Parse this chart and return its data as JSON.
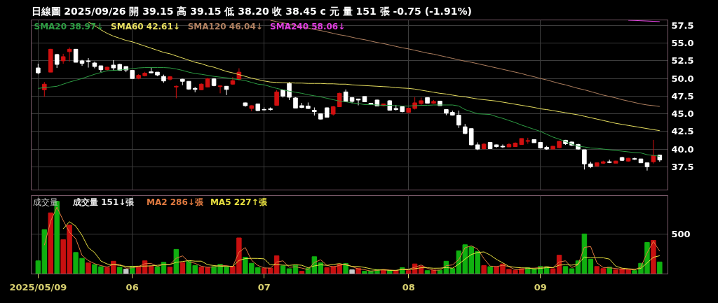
{
  "chart_data": [
    {
      "type": "candlestick",
      "title": "日線圖 2025/09/26 開 39.15 高 39.15 低 38.20 收 38.45 c 元 量 151 張 -0.75 (-1.91%)",
      "categories": [
        "2025/05/09",
        null,
        null,
        null,
        null,
        null,
        null,
        null,
        null,
        null,
        null,
        null,
        null,
        null,
        null,
        "06",
        null,
        null,
        null,
        null,
        null,
        null,
        null,
        null,
        null,
        null,
        null,
        null,
        null,
        null,
        null,
        null,
        null,
        null,
        null,
        null,
        "07",
        null,
        null,
        null,
        null,
        null,
        null,
        null,
        null,
        null,
        null,
        null,
        null,
        null,
        null,
        null,
        null,
        null,
        null,
        null,
        null,
        null,
        null,
        "08",
        null,
        null,
        null,
        null,
        null,
        null,
        null,
        null,
        null,
        null,
        null,
        null,
        null,
        null,
        null,
        null,
        null,
        null,
        null,
        null,
        "09",
        null,
        null,
        null,
        null,
        null,
        null,
        null,
        null,
        null,
        null,
        null,
        null,
        null,
        null,
        null,
        null,
        null,
        null,
        null
      ],
      "colors": [
        "#ffffff",
        "#d01010",
        "#d01010",
        "#ffffff",
        "#d01010",
        "#d01010",
        "#ffffff",
        "#ffffff",
        "#ffffff",
        "#ffffff",
        "#ffffff",
        "#d01010",
        "#ffffff",
        "#ffffff",
        "#ffffff",
        "#ffffff",
        "#d01010",
        "#d01010",
        "#ffffff",
        "#ffffff",
        "#ffffff",
        "#d01010",
        "#d01010",
        "#ffffff",
        "#ffffff",
        "#ffffff",
        "#d01010",
        "#d01010",
        "#ffffff",
        "#d01010",
        "#ffffff",
        "#d01010",
        "#d01010",
        "#ffffff",
        "#d01010",
        "#ffffff",
        "#ffffff",
        "#ffffff",
        "#d01010",
        "#ffffff",
        "#ffffff",
        "#ffffff",
        "#ffffff",
        "#ffffff",
        "#ffffff",
        "#ffffff",
        "#ffffff",
        "#d01010",
        "#d01010",
        "#ffffff",
        "#ffffff",
        "#ffffff",
        "#ffffff",
        "#ffffff",
        "#ffffff",
        "#d01010",
        "#ffffff",
        "#ffffff",
        "#ffffff",
        "#d01010",
        "#d01010",
        "#d01010",
        "#ffffff",
        "#d01010",
        "#ffffff",
        "#ffffff",
        "#ffffff",
        "#ffffff",
        "#ffffff",
        "#ffffff",
        "#ffffff",
        "#d01010",
        "#ffffff",
        "#ffffff",
        "#ffffff",
        "#d01010",
        "#d01010",
        "#d01010",
        "#d01010",
        "#ffffff",
        "#ffffff",
        "#ffffff",
        "#d01010",
        "#d01010",
        "#ffffff",
        "#ffffff",
        "#ffffff",
        "#ffffff",
        "#ffffff",
        "#d01010",
        "#d01010",
        "#ffffff",
        "#d01010",
        "#ffffff",
        "#d01010",
        "#ffffff",
        "#ffffff",
        "#ffffff",
        "#d01010",
        "#ffffff"
      ],
      "ohlc": [
        [
          51.5,
          52.1,
          50.6,
          50.8
        ],
        [
          48.4,
          49.5,
          47.4,
          49.2
        ],
        [
          50.9,
          54.2,
          50.9,
          54.15
        ],
        [
          53.4,
          53.5,
          51.5,
          52.0
        ],
        [
          52.5,
          53.5,
          52.1,
          53.1
        ],
        [
          53.8,
          54.4,
          52.4,
          54.15
        ],
        [
          54.15,
          54.15,
          52.3,
          52.3
        ],
        [
          52.5,
          52.65,
          51.8,
          52.15
        ],
        [
          52.5,
          52.9,
          51.55,
          52.4
        ],
        [
          52.2,
          52.4,
          51.45,
          51.7
        ],
        [
          51.8,
          51.8,
          50.9,
          51.25
        ],
        [
          51.25,
          51.7,
          51.1,
          51.6
        ],
        [
          51.9,
          52.6,
          51.1,
          51.5
        ],
        [
          52.0,
          52.1,
          51.1,
          51.15
        ],
        [
          51.7,
          51.7,
          50.9,
          51.2
        ],
        [
          51.15,
          51.2,
          50.0,
          50.0
        ],
        [
          50.05,
          50.6,
          49.9,
          50.45
        ],
        [
          50.4,
          50.95,
          50.3,
          50.75
        ],
        [
          50.95,
          51.55,
          50.75,
          50.8
        ],
        [
          50.9,
          50.9,
          50.35,
          50.5
        ],
        [
          50.3,
          50.55,
          49.4,
          49.65
        ],
        [
          49.9,
          50.35,
          49.7,
          50.25
        ],
        [
          48.8,
          49.0,
          47.2,
          48.9
        ],
        [
          49.9,
          49.95,
          49.05,
          49.6
        ],
        [
          49.6,
          49.6,
          48.4,
          48.5
        ],
        [
          48.6,
          48.8,
          48.05,
          48.45
        ],
        [
          48.4,
          49.3,
          48.35,
          49.2
        ],
        [
          48.8,
          50.1,
          48.75,
          49.95
        ],
        [
          49.95,
          50.05,
          48.9,
          49.0
        ],
        [
          48.85,
          49.0,
          47.9,
          48.95
        ],
        [
          48.9,
          48.9,
          47.65,
          48.45
        ],
        [
          49.2,
          50.2,
          49.1,
          49.7
        ],
        [
          49.9,
          51.45,
          49.7,
          50.9
        ],
        [
          46.55,
          46.6,
          46.0,
          46.15
        ],
        [
          45.75,
          46.2,
          45.35,
          46.15
        ],
        [
          46.4,
          46.45,
          45.4,
          45.45
        ],
        [
          45.6,
          45.9,
          45.45,
          45.55
        ],
        [
          45.7,
          45.9,
          45.45,
          45.6
        ],
        [
          46.2,
          48.35,
          46.2,
          48.1
        ],
        [
          48.35,
          48.45,
          47.3,
          47.5
        ],
        [
          49.3,
          49.5,
          46.95,
          47.35
        ],
        [
          47.25,
          47.35,
          45.8,
          45.8
        ],
        [
          46.15,
          46.55,
          45.8,
          45.9
        ],
        [
          46.1,
          46.6,
          45.7,
          45.75
        ],
        [
          45.5,
          45.9,
          44.75,
          45.3
        ],
        [
          45.0,
          45.0,
          44.2,
          44.25
        ],
        [
          45.85,
          45.9,
          44.5,
          44.5
        ],
        [
          44.95,
          46.1,
          44.75,
          46.0
        ],
        [
          46.0,
          48.0,
          45.95,
          47.9
        ],
        [
          48.1,
          48.45,
          46.7,
          46.75
        ],
        [
          47.3,
          47.35,
          46.5,
          46.75
        ],
        [
          47.1,
          47.1,
          46.2,
          46.95
        ],
        [
          47.45,
          47.45,
          46.7,
          46.7
        ],
        [
          46.5,
          46.5,
          46.25,
          46.3
        ],
        [
          46.95,
          47.0,
          46.05,
          46.1
        ],
        [
          46.15,
          46.45,
          46.05,
          46.4
        ],
        [
          46.85,
          46.9,
          45.5,
          45.5
        ],
        [
          45.75,
          46.25,
          45.45,
          45.6
        ],
        [
          46.0,
          46.0,
          45.2,
          45.3
        ],
        [
          45.2,
          45.8,
          45.2,
          45.8
        ],
        [
          45.75,
          47.35,
          45.6,
          46.55
        ],
        [
          46.45,
          47.3,
          46.15,
          46.85
        ],
        [
          47.3,
          47.3,
          46.5,
          46.5
        ],
        [
          46.5,
          46.95,
          46.4,
          46.75
        ],
        [
          46.8,
          46.8,
          46.15,
          46.15
        ],
        [
          45.6,
          45.6,
          44.8,
          45.1
        ],
        [
          45.2,
          45.45,
          44.75,
          44.8
        ],
        [
          44.8,
          45.45,
          43.0,
          43.4
        ],
        [
          43.15,
          43.55,
          42.1,
          42.2
        ],
        [
          42.9,
          42.9,
          40.55,
          40.6
        ],
        [
          40.6,
          40.95,
          39.85,
          40.0
        ],
        [
          40.05,
          40.85,
          39.95,
          40.7
        ],
        [
          40.95,
          40.95,
          40.0,
          40.05
        ],
        [
          40.6,
          40.65,
          40.2,
          40.35
        ],
        [
          40.4,
          40.65,
          40.15,
          40.3
        ],
        [
          40.3,
          40.85,
          40.3,
          40.65
        ],
        [
          40.35,
          40.95,
          40.3,
          40.85
        ],
        [
          40.65,
          41.5,
          40.65,
          41.5
        ],
        [
          41.1,
          41.6,
          40.75,
          41.2
        ],
        [
          41.35,
          41.35,
          40.9,
          40.9
        ],
        [
          40.95,
          40.95,
          40.1,
          40.15
        ],
        [
          40.25,
          40.45,
          39.9,
          40.0
        ],
        [
          40.0,
          40.45,
          40.0,
          40.4
        ],
        [
          40.2,
          41.2,
          40.1,
          41.1
        ],
        [
          41.25,
          41.3,
          40.6,
          40.75
        ],
        [
          41.0,
          41.05,
          40.45,
          40.55
        ],
        [
          40.65,
          40.75,
          39.9,
          40.0
        ],
        [
          39.9,
          39.9,
          37.1,
          37.9
        ],
        [
          37.9,
          38.2,
          37.3,
          37.5
        ],
        [
          37.6,
          38.1,
          37.55,
          38.05
        ],
        [
          38.0,
          38.35,
          37.9,
          38.2
        ],
        [
          38.2,
          38.5,
          38.0,
          38.1
        ],
        [
          38.0,
          38.35,
          38.0,
          38.3
        ],
        [
          38.8,
          38.9,
          38.3,
          38.4
        ],
        [
          38.3,
          38.75,
          38.2,
          38.7
        ],
        [
          38.65,
          38.8,
          38.45,
          38.55
        ],
        [
          38.6,
          38.6,
          38.05,
          38.05
        ],
        [
          38.05,
          38.05,
          36.95,
          37.5
        ],
        [
          38.2,
          41.3,
          37.95,
          39.05
        ],
        [
          39.15,
          39.15,
          38.2,
          38.45
        ]
      ],
      "series": [
        {
          "name": "SMA20 38.97↓",
          "type": "line",
          "color": "#2e9e44",
          "values": [
            48.6,
            48.7,
            48.8,
            48.9,
            49.2,
            49.5,
            49.75,
            50.0,
            50.3,
            50.6,
            50.85,
            51.1,
            51.15,
            51.2,
            51.3,
            51.4,
            51.5,
            51.55,
            51.55,
            51.55,
            51.55,
            51.5,
            51.35,
            51.15,
            50.9,
            50.7,
            50.6,
            50.45,
            50.3,
            50.2,
            50.1,
            49.95,
            49.85,
            49.7,
            49.45,
            49.2,
            49.1,
            48.85,
            48.6,
            48.4,
            48.2,
            48.05,
            47.9,
            47.7,
            47.55,
            47.4,
            47.2,
            47.0,
            46.8,
            46.7,
            46.55,
            46.45,
            46.3,
            46.3,
            46.25,
            46.2,
            46.2,
            46.15,
            46.1,
            46.1,
            46.15,
            46.2,
            46.2,
            46.25,
            46.25,
            46.25,
            46.25,
            46.1,
            45.6,
            45.3,
            45.0,
            44.95,
            44.9,
            44.6,
            44.35,
            44.05,
            43.75,
            43.4,
            43.1,
            42.8,
            42.5,
            42.1,
            41.7,
            41.4,
            41.05,
            40.7,
            40.4,
            40.3,
            40.15,
            40.1,
            40.0,
            39.9,
            39.8,
            39.7,
            39.6,
            39.5,
            39.45,
            39.2,
            39.1,
            38.97
          ]
        },
        {
          "name": "SMA60 42.61↓",
          "type": "line",
          "color": "#e8e060",
          "values": [
            null,
            null,
            null,
            null,
            null,
            null,
            null,
            null,
            58.0,
            57.5,
            56.9,
            56.4,
            56.0,
            55.7,
            55.4,
            55.2,
            54.9,
            54.6,
            54.3,
            54.0,
            53.7,
            53.5,
            53.2,
            52.9,
            52.6,
            52.3,
            52.1,
            51.8,
            51.6,
            51.3,
            51.0,
            50.8,
            50.55,
            50.3,
            50.05,
            49.85,
            49.65,
            49.5,
            49.45,
            49.4,
            49.4,
            49.35,
            49.35,
            49.3,
            49.3,
            49.3,
            49.25,
            49.25,
            49.2,
            49.2,
            49.1,
            49.05,
            49.0,
            48.95,
            48.9,
            48.85,
            48.8,
            48.7,
            48.65,
            48.6,
            48.5,
            48.35,
            48.2,
            48.05,
            47.9,
            47.8,
            47.65,
            47.5,
            47.4,
            47.25,
            47.1,
            47.0,
            46.9,
            46.8,
            46.65,
            46.5,
            46.35,
            46.2,
            46.05,
            45.9,
            45.7,
            45.6,
            45.45,
            45.3,
            45.15,
            45.0,
            44.85,
            44.65,
            44.45,
            44.25,
            44.05,
            43.85,
            43.65,
            43.5,
            43.35,
            43.2,
            43.05,
            42.9,
            42.75,
            42.61
          ]
        },
        {
          "name": "SMA120 46.04↓",
          "type": "line",
          "color": "#b08060",
          "values": [
            null,
            null,
            null,
            null,
            null,
            null,
            null,
            null,
            null,
            null,
            null,
            null,
            null,
            null,
            null,
            null,
            null,
            null,
            null,
            null,
            null,
            null,
            null,
            null,
            null,
            null,
            null,
            null,
            null,
            null,
            null,
            null,
            null,
            null,
            null,
            null,
            null,
            58.25,
            58.05,
            57.9,
            57.7,
            57.5,
            57.3,
            57.15,
            56.95,
            56.8,
            56.6,
            56.4,
            56.2,
            56.05,
            55.85,
            55.65,
            55.5,
            55.3,
            55.1,
            54.95,
            54.75,
            54.55,
            54.35,
            54.2,
            54.0,
            53.8,
            53.6,
            53.45,
            53.25,
            53.05,
            52.85,
            52.65,
            52.45,
            52.3,
            52.1,
            51.9,
            51.7,
            51.5,
            51.3,
            51.1,
            50.9,
            50.7,
            50.45,
            50.25,
            50.0,
            49.8,
            49.55,
            49.3,
            49.1,
            48.85,
            48.6,
            48.4,
            48.15,
            47.9,
            47.65,
            47.45,
            47.25,
            47.0,
            46.8,
            46.6,
            46.4,
            46.25,
            46.15,
            46.04
          ]
        },
        {
          "name": "SMA240 58.06↓",
          "type": "line",
          "color": "#e040e0",
          "values": [
            null,
            null,
            null,
            null,
            null,
            null,
            null,
            null,
            null,
            null,
            null,
            null,
            null,
            null,
            null,
            null,
            null,
            null,
            null,
            null,
            null,
            null,
            null,
            null,
            null,
            null,
            null,
            null,
            null,
            null,
            null,
            null,
            null,
            null,
            null,
            null,
            null,
            null,
            null,
            null,
            null,
            null,
            null,
            null,
            null,
            null,
            null,
            null,
            null,
            null,
            null,
            null,
            null,
            null,
            null,
            null,
            null,
            null,
            null,
            null,
            null,
            null,
            null,
            null,
            null,
            null,
            null,
            null,
            null,
            null,
            null,
            null,
            null,
            null,
            null,
            null,
            null,
            null,
            null,
            null,
            null,
            null,
            null,
            null,
            null,
            null,
            null,
            null,
            null,
            null,
            null,
            null,
            null,
            null,
            58.25,
            58.22,
            58.18,
            58.14,
            58.1,
            58.06
          ]
        }
      ],
      "ylim": [
        34.2,
        58.3
      ],
      "yticks": [
        37.5,
        {
          "value": 40,
          "label": "40.0"
        },
        42.5,
        {
          "value": 45,
          "label": "45.0"
        },
        47.5,
        {
          "value": 50,
          "label": "50.0"
        },
        52.5,
        {
          "value": 55,
          "label": "55.0"
        },
        57.5
      ],
      "grid": true,
      "legend": "top left",
      "tick_labels": "y"
    },
    {
      "type": "bar",
      "title": "成交量",
      "categories": [
        "2025/05/09",
        null,
        null,
        null,
        null,
        null,
        null,
        null,
        null,
        null,
        null,
        null,
        null,
        null,
        null,
        "06",
        null,
        null,
        null,
        null,
        null,
        null,
        null,
        null,
        null,
        null,
        null,
        null,
        null,
        null,
        null,
        null,
        null,
        null,
        null,
        null,
        "07",
        null,
        null,
        null,
        null,
        null,
        null,
        null,
        null,
        null,
        null,
        null,
        null,
        null,
        null,
        null,
        null,
        null,
        null,
        null,
        null,
        null,
        null,
        "08",
        null,
        null,
        null,
        null,
        null,
        null,
        null,
        null,
        null,
        null,
        null,
        null,
        null,
        null,
        null,
        null,
        null,
        null,
        null,
        null,
        "09",
        null,
        null,
        null,
        null,
        null,
        null,
        null,
        null,
        null,
        null,
        null,
        null,
        null,
        null,
        null,
        null,
        null,
        null,
        null
      ],
      "series": [
        {
          "name": "成交量 151↓張",
          "type": "bar",
          "values": [
            165,
            558,
            768,
            912,
            432,
            616,
            270,
            196,
            139,
            118,
            92,
            81,
            160,
            86,
            60,
            94,
            92,
            165,
            100,
            92,
            147,
            86,
            309,
            144,
            160,
            107,
            86,
            81,
            94,
            121,
            86,
            97,
            453,
            210,
            134,
            79,
            73,
            73,
            228,
            102,
            66,
            113,
            34,
            73,
            217,
            139,
            79,
            94,
            121,
            131,
            52,
            73,
            34,
            37,
            55,
            55,
            42,
            42,
            79,
            42,
            126,
            100,
            42,
            50,
            47,
            160,
            68,
            291,
            367,
            341,
            283,
            105,
            92,
            92,
            126,
            58,
            45,
            66,
            79,
            66,
            94,
            92,
            66,
            236,
            94,
            66,
            165,
            503,
            186,
            94,
            68,
            86,
            52,
            66,
            55,
            42,
            134,
            396,
            422,
            151
          ],
          "colors": [
            "#10b010",
            "#10b010",
            "#c81010",
            "#10b010",
            "#c81010",
            "#c81010",
            "#10b010",
            "#10b010",
            "#c81010",
            "#10b010",
            "#10b010",
            "#c81010",
            "#c81010",
            "#10b010",
            "#c8c8c8",
            "#10b010",
            "#c81010",
            "#c81010",
            "#c81010",
            "#10b010",
            "#10b010",
            "#c81010",
            "#10b010",
            "#c81010",
            "#10b010",
            "#10b010",
            "#c81010",
            "#c81010",
            "#10b010",
            "#10b010",
            "#10b010",
            "#c81010",
            "#c81010",
            "#10b010",
            "#10b010",
            "#10b010",
            "#c81010",
            "#c81010",
            "#c81010",
            "#10b010",
            "#10b010",
            "#10b010",
            "#c81010",
            "#10b010",
            "#10b010",
            "#10b010",
            "#c81010",
            "#c81010",
            "#c81010",
            "#10b010",
            "#c8c8c8",
            "#c81010",
            "#10b010",
            "#10b010",
            "#10b010",
            "#c81010",
            "#10b010",
            "#c81010",
            "#10b010",
            "#c81010",
            "#c81010",
            "#c81010",
            "#10b010",
            "#c81010",
            "#10b010",
            "#10b010",
            "#10b010",
            "#10b010",
            "#10b010",
            "#10b010",
            "#10b010",
            "#c81010",
            "#10b010",
            "#c81010",
            "#c81010",
            "#c81010",
            "#c81010",
            "#c81010",
            "#10b010",
            "#10b010",
            "#10b010",
            "#10b010",
            "#c81010",
            "#c81010",
            "#10b010",
            "#10b010",
            "#10b010",
            "#10b010",
            "#10b010",
            "#c81010",
            "#c81010",
            "#10b010",
            "#c81010",
            "#c81010",
            "#c81010",
            "#10b010",
            "#10b010",
            "#10b010",
            "#c81010",
            "#10b010"
          ]
        },
        {
          "name": "MA2 286↓張",
          "type": "line",
          "color": "#e07a40",
          "values": [
            null,
            362,
            663,
            840,
            672,
            524,
            443,
            233,
            168,
            129,
            105,
            87,
            121,
            123,
            73,
            77,
            93,
            129,
            133,
            96,
            120,
            117,
            198,
            227,
            152,
            134,
            97,
            84,
            88,
            108,
            104,
            92,
            275,
            332,
            172,
            107,
            76,
            73,
            151,
            165,
            84,
            90,
            74,
            54,
            145,
            178,
            109,
            87,
            108,
            126,
            92,
            63,
            54,
            36,
            46,
            55,
            49,
            42,
            61,
            61,
            84,
            113,
            71,
            46,
            49,
            104,
            114,
            180,
            329,
            354,
            312,
            194,
            99,
            92,
            109,
            92,
            52,
            56,
            73,
            73,
            80,
            93,
            79,
            151,
            165,
            80,
            116,
            334,
            345,
            140,
            81,
            77,
            69,
            59,
            61,
            49,
            88,
            265,
            409,
            286
          ]
        },
        {
          "name": "MA5 227↑張",
          "type": "line",
          "color": "#e8e040",
          "values": [
            null,
            null,
            null,
            null,
            567,
            657,
            600,
            485,
            331,
            268,
            163,
            125,
            118,
            107,
            96,
            96,
            98,
            99,
            102,
            109,
            119,
            118,
            147,
            156,
            169,
            161,
            161,
            116,
            106,
            98,
            94,
            96,
            170,
            193,
            196,
            195,
            190,
            114,
            117,
            111,
            108,
            116,
            109,
            78,
            101,
            115,
            108,
            120,
            130,
            113,
            95,
            94,
            82,
            65,
            50,
            51,
            45,
            46,
            55,
            52,
            66,
            78,
            78,
            72,
            73,
            80,
            73,
            123,
            187,
            245,
            270,
            277,
            238,
            183,
            140,
            95,
            83,
            77,
            75,
            63,
            70,
            79,
            79,
            111,
            116,
            111,
            125,
            213,
            203,
            203,
            203,
            187,
            97,
            73,
            65,
            60,
            70,
            139,
            210,
            229
          ]
        }
      ],
      "ylim": [
        0,
        985
      ],
      "yticks": [
        500
      ],
      "grid": true,
      "legend": "top left"
    }
  ]
}
